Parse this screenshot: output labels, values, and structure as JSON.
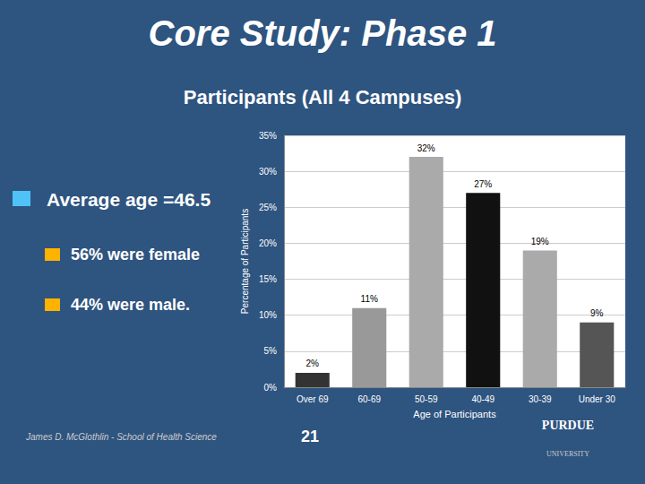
{
  "chart_data": {
    "type": "bar",
    "title": "Core Study: Phase 1",
    "subtitle": "Participants (All 4 Campuses)",
    "annotations": [
      "Average age =46.5",
      "56% were female",
      "44% were male.",
      "James D. McGlothlin - School of Health Science",
      "21",
      "PURDUE",
      "UNIVERSITY"
    ],
    "categories": [
      "Over 69",
      "60-69",
      "50-59",
      "40-49",
      "30-39",
      "Under 30"
    ],
    "values": [
      2,
      11,
      32,
      27,
      19,
      9
    ],
    "value_labels": [
      "2%",
      "11%",
      "32%",
      "27%",
      "19%",
      "9%"
    ],
    "data_labels": true,
    "colors": [
      "#333333",
      "#999999",
      "#AAAAAA",
      "#111111",
      "#AAAAAA",
      "#555555"
    ],
    "xlabel": "Age of Participants",
    "ylabel": "Percentage of Participants",
    "ylim": [
      0,
      35
    ],
    "yticks": [
      {
        "value": 0,
        "label": "0%"
      },
      {
        "value": 5,
        "label": "5%"
      },
      {
        "value": 10,
        "label": "10%"
      },
      {
        "value": 15,
        "label": "15%"
      },
      {
        "value": 20,
        "label": "20%"
      },
      {
        "value": 25,
        "label": "25%"
      },
      {
        "value": 30,
        "label": "30%"
      },
      {
        "value": 35,
        "label": "35%"
      }
    ],
    "grid": true
  }
}
